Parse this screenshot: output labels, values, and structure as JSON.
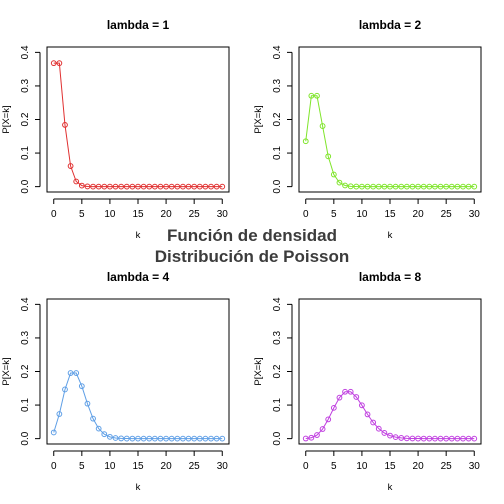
{
  "figure": {
    "title_line1": "Función de densidad",
    "title_line2": "Distribución de Poisson"
  },
  "chart_data": [
    {
      "type": "line",
      "title": "lambda = 1",
      "xlabel": "k",
      "ylabel": "P[X=k]",
      "color": "#e03030",
      "xlim": [
        0,
        30
      ],
      "ylim": [
        0,
        0.4
      ],
      "xticks": [
        0,
        5,
        10,
        15,
        20,
        25,
        30
      ],
      "yticks": [
        0.0,
        0.1,
        0.2,
        0.3,
        0.4
      ],
      "x": [
        0,
        1,
        2,
        3,
        4,
        5,
        6,
        7,
        8,
        9,
        10,
        11,
        12,
        13,
        14,
        15,
        16,
        17,
        18,
        19,
        20,
        21,
        22,
        23,
        24,
        25,
        26,
        27,
        28,
        29,
        30
      ],
      "y": [
        0.3679,
        0.3679,
        0.1839,
        0.0613,
        0.0153,
        0.0031,
        0.0005,
        0.0001,
        0,
        0,
        0,
        0,
        0,
        0,
        0,
        0,
        0,
        0,
        0,
        0,
        0,
        0,
        0,
        0,
        0,
        0,
        0,
        0,
        0,
        0,
        0
      ]
    },
    {
      "type": "line",
      "title": "lambda = 2",
      "xlabel": "k",
      "ylabel": "P[X=k]",
      "color": "#7fe52a",
      "xlim": [
        0,
        30
      ],
      "ylim": [
        0,
        0.4
      ],
      "xticks": [
        0,
        5,
        10,
        15,
        20,
        25,
        30
      ],
      "yticks": [
        0.0,
        0.1,
        0.2,
        0.3,
        0.4
      ],
      "x": [
        0,
        1,
        2,
        3,
        4,
        5,
        6,
        7,
        8,
        9,
        10,
        11,
        12,
        13,
        14,
        15,
        16,
        17,
        18,
        19,
        20,
        21,
        22,
        23,
        24,
        25,
        26,
        27,
        28,
        29,
        30
      ],
      "y": [
        0.1353,
        0.2707,
        0.2707,
        0.1804,
        0.0902,
        0.0361,
        0.012,
        0.0034,
        0.0009,
        0.0002,
        0,
        0,
        0,
        0,
        0,
        0,
        0,
        0,
        0,
        0,
        0,
        0,
        0,
        0,
        0,
        0,
        0,
        0,
        0,
        0,
        0
      ]
    },
    {
      "type": "line",
      "title": "lambda = 4",
      "xlabel": "k",
      "ylabel": "P[X=k]",
      "color": "#5f9fe6",
      "xlim": [
        0,
        30
      ],
      "ylim": [
        0,
        0.4
      ],
      "xticks": [
        0,
        5,
        10,
        15,
        20,
        25,
        30
      ],
      "yticks": [
        0.0,
        0.1,
        0.2,
        0.3,
        0.4
      ],
      "x": [
        0,
        1,
        2,
        3,
        4,
        5,
        6,
        7,
        8,
        9,
        10,
        11,
        12,
        13,
        14,
        15,
        16,
        17,
        18,
        19,
        20,
        21,
        22,
        23,
        24,
        25,
        26,
        27,
        28,
        29,
        30
      ],
      "y": [
        0.0183,
        0.0733,
        0.1465,
        0.1954,
        0.1954,
        0.1563,
        0.1042,
        0.0595,
        0.0298,
        0.0132,
        0.0053,
        0.0019,
        0.0006,
        0.0002,
        0.0001,
        0,
        0,
        0,
        0,
        0,
        0,
        0,
        0,
        0,
        0,
        0,
        0,
        0,
        0,
        0,
        0
      ]
    },
    {
      "type": "line",
      "title": "lambda = 8",
      "xlabel": "k",
      "ylabel": "P[X=k]",
      "color": "#c040e0",
      "xlim": [
        0,
        30
      ],
      "ylim": [
        0,
        0.4
      ],
      "xticks": [
        0,
        5,
        10,
        15,
        20,
        25,
        30
      ],
      "yticks": [
        0.0,
        0.1,
        0.2,
        0.3,
        0.4
      ],
      "x": [
        0,
        1,
        2,
        3,
        4,
        5,
        6,
        7,
        8,
        9,
        10,
        11,
        12,
        13,
        14,
        15,
        16,
        17,
        18,
        19,
        20,
        21,
        22,
        23,
        24,
        25,
        26,
        27,
        28,
        29,
        30
      ],
      "y": [
        0.0003,
        0.0027,
        0.0107,
        0.0286,
        0.0573,
        0.0916,
        0.1221,
        0.1396,
        0.1396,
        0.1241,
        0.0993,
        0.0722,
        0.0481,
        0.0296,
        0.0169,
        0.009,
        0.0045,
        0.0021,
        0.0009,
        0.0004,
        0.0002,
        0.0001,
        0,
        0,
        0,
        0,
        0,
        0,
        0,
        0,
        0
      ]
    }
  ]
}
